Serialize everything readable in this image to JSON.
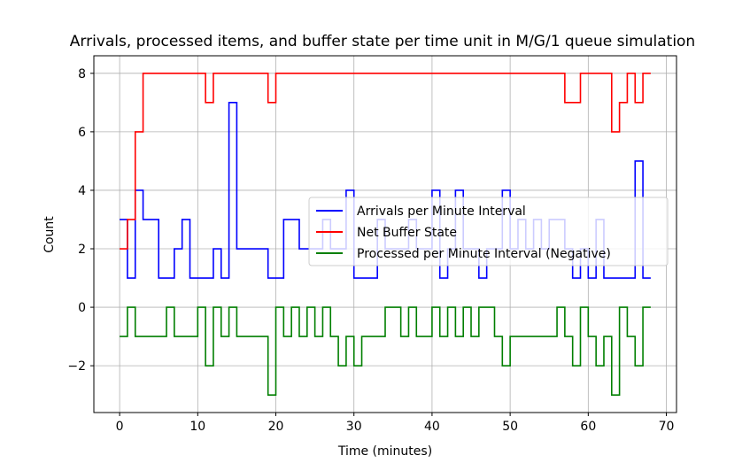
{
  "chart_data": {
    "type": "line",
    "step": true,
    "title": "Arrivals, processed items, and buffer state per time unit in M/G/1 queue simulation",
    "xlabel": "Time (minutes)",
    "ylabel": "Count",
    "xlim": [
      -3.3,
      71.3
    ],
    "ylim": [
      -3.6,
      8.6
    ],
    "xticks": [
      0,
      10,
      20,
      30,
      40,
      50,
      60,
      70
    ],
    "xtick_labels": [
      "0",
      "10",
      "20",
      "30",
      "40",
      "50",
      "60",
      "70"
    ],
    "yticks": [
      -2,
      0,
      2,
      4,
      6,
      8
    ],
    "ytick_labels": [
      "−2",
      "0",
      "2",
      "4",
      "6",
      "8"
    ],
    "grid": true,
    "legend_position": "center-right",
    "series": [
      {
        "name": "Arrivals per Minute Interval",
        "color": "#0000ff",
        "x": [
          0,
          1,
          2,
          3,
          4,
          5,
          6,
          7,
          8,
          9,
          10,
          11,
          12,
          13,
          14,
          15,
          16,
          17,
          18,
          19,
          20,
          21,
          22,
          23,
          24,
          25,
          26,
          27,
          28,
          29,
          30,
          31,
          32,
          33,
          34,
          35,
          36,
          37,
          38,
          39,
          40,
          41,
          42,
          43,
          44,
          45,
          46,
          47,
          48,
          49,
          50,
          51,
          52,
          53,
          54,
          55,
          56,
          57,
          58,
          59,
          60,
          61,
          62,
          63,
          64,
          65,
          66,
          67,
          68
        ],
        "y": [
          3,
          1,
          4,
          3,
          3,
          1,
          1,
          2,
          3,
          1,
          1,
          1,
          2,
          1,
          7,
          2,
          2,
          2,
          2,
          1,
          1,
          3,
          3,
          2,
          2,
          2,
          3,
          2,
          2,
          4,
          1,
          1,
          1,
          3,
          2,
          2,
          2,
          3,
          2,
          2,
          4,
          1,
          2,
          4,
          2,
          2,
          1,
          2,
          2,
          4,
          2,
          3,
          2,
          3,
          2,
          3,
          3,
          2,
          1,
          2,
          1,
          3,
          1,
          1,
          1,
          1,
          5,
          1,
          1
        ]
      },
      {
        "name": "Net Buffer State",
        "color": "#ff0000",
        "x": [
          0,
          1,
          2,
          3,
          4,
          5,
          6,
          7,
          8,
          9,
          10,
          11,
          12,
          13,
          14,
          15,
          16,
          17,
          18,
          19,
          20,
          21,
          22,
          23,
          24,
          25,
          26,
          27,
          28,
          29,
          30,
          31,
          32,
          33,
          34,
          35,
          36,
          37,
          38,
          39,
          40,
          41,
          42,
          43,
          44,
          45,
          46,
          47,
          48,
          49,
          50,
          51,
          52,
          53,
          54,
          55,
          56,
          57,
          58,
          59,
          60,
          61,
          62,
          63,
          64,
          65,
          66,
          67,
          68
        ],
        "y": [
          2,
          3,
          6,
          8,
          8,
          8,
          8,
          8,
          8,
          8,
          8,
          7,
          8,
          8,
          8,
          8,
          8,
          8,
          8,
          7,
          8,
          8,
          8,
          8,
          8,
          8,
          8,
          8,
          8,
          8,
          8,
          8,
          8,
          8,
          8,
          8,
          8,
          8,
          8,
          8,
          8,
          8,
          8,
          8,
          8,
          8,
          8,
          8,
          8,
          8,
          8,
          8,
          8,
          8,
          8,
          8,
          8,
          7,
          7,
          8,
          8,
          8,
          8,
          6,
          7,
          8,
          7,
          8,
          8
        ]
      },
      {
        "name": "Processed per Minute Interval (Negative)",
        "color": "#007f00",
        "x": [
          0,
          1,
          2,
          3,
          4,
          5,
          6,
          7,
          8,
          9,
          10,
          11,
          12,
          13,
          14,
          15,
          16,
          17,
          18,
          19,
          20,
          21,
          22,
          23,
          24,
          25,
          26,
          27,
          28,
          29,
          30,
          31,
          32,
          33,
          34,
          35,
          36,
          37,
          38,
          39,
          40,
          41,
          42,
          43,
          44,
          45,
          46,
          47,
          48,
          49,
          50,
          51,
          52,
          53,
          54,
          55,
          56,
          57,
          58,
          59,
          60,
          61,
          62,
          63,
          64,
          65,
          66,
          67,
          68
        ],
        "y": [
          -1,
          0,
          -1,
          -1,
          -1,
          -1,
          0,
          -1,
          -1,
          -1,
          0,
          -2,
          0,
          -1,
          0,
          -1,
          -1,
          -1,
          -1,
          -3,
          0,
          -1,
          0,
          -1,
          0,
          -1,
          0,
          -1,
          -2,
          -1,
          -2,
          -1,
          -1,
          -1,
          0,
          0,
          -1,
          0,
          -1,
          -1,
          0,
          -1,
          0,
          -1,
          0,
          -1,
          0,
          0,
          -1,
          -2,
          -1,
          -1,
          -1,
          -1,
          -1,
          -1,
          0,
          -1,
          -2,
          0,
          -1,
          -2,
          -1,
          -3,
          0,
          -1,
          -2,
          0,
          0
        ]
      }
    ]
  }
}
